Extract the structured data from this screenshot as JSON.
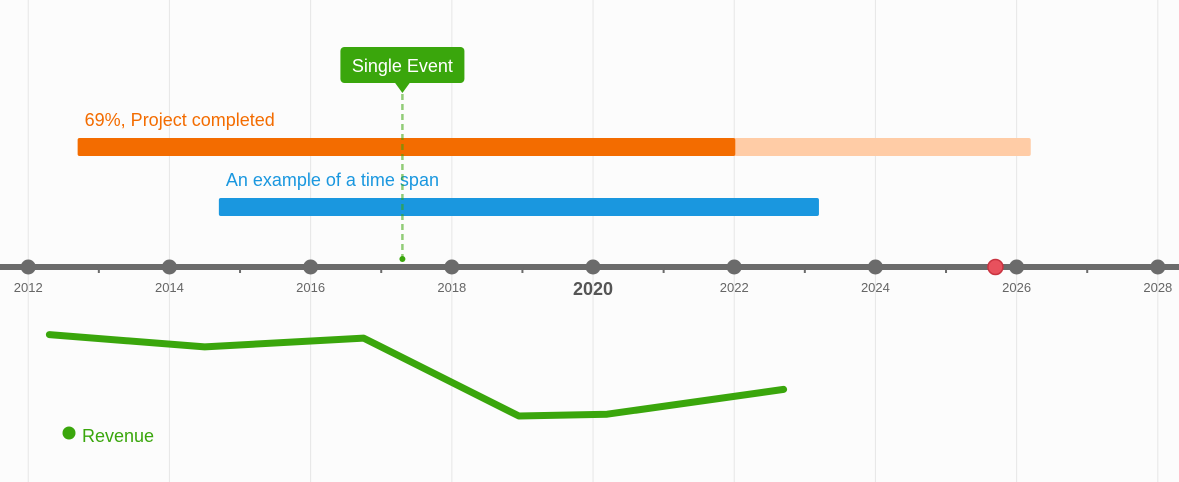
{
  "chart_data": {
    "type": "timeline",
    "x_axis": {
      "type": "date",
      "min": 2011.6,
      "max": 2028.3,
      "ticks": [
        2012,
        2014,
        2016,
        2018,
        2020,
        2022,
        2024,
        2026,
        2028
      ],
      "tick_labels": [
        "2012",
        "2014",
        "2016",
        "2018",
        "2020",
        "2022",
        "2024",
        "2026",
        "2028"
      ],
      "major_tick": "2020",
      "current_date": 2025.7,
      "grid": true
    },
    "colors": {
      "axis": "#6b6b6b",
      "grid": "#e6e6e6",
      "current_date": "#e8515d",
      "project": "#f36c00",
      "project_remaining": "#ffcca6",
      "span": "#1a97df",
      "event": "#3aa60c",
      "revenue": "#3aa60c"
    },
    "spans": [
      {
        "label": "69%, Project completed",
        "start": 2012.7,
        "end": 2026.2,
        "progress": 0.69,
        "color": "#f36c00"
      },
      {
        "label": "An example of a time span",
        "start": 2014.7,
        "end": 2023.2,
        "color": "#1a97df"
      }
    ],
    "events": [
      {
        "label": "Single Event",
        "date": 2017.3,
        "color": "#3aa60c"
      }
    ],
    "series": [
      {
        "name": "Revenue",
        "color": "#3aa60c",
        "x": [
          2012.3,
          2014.5,
          2016.75,
          2018.95,
          2020.2,
          2022.7
        ],
        "values": [
          72,
          65,
          70,
          26,
          27,
          41
        ]
      }
    ],
    "y_range": [
      0,
      100
    ],
    "legend": {
      "placement": "bottom-left",
      "label": "Revenue"
    }
  }
}
